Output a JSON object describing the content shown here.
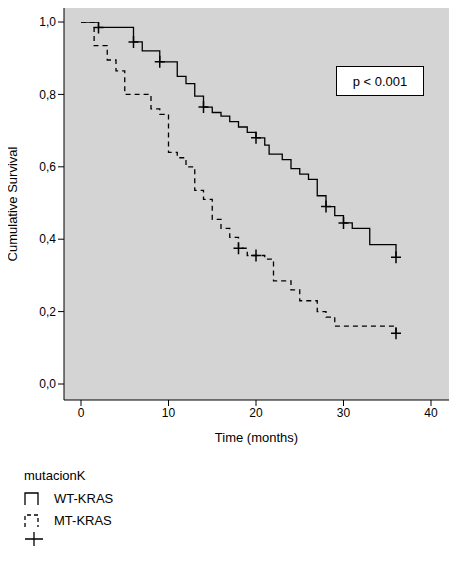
{
  "chart_data": {
    "type": "line",
    "x_label": "Time (months)",
    "y_label": "Cumulative Survival",
    "annotation": "p < 0.001",
    "legend_title": "mutacionK",
    "xlim": [
      0,
      40
    ],
    "xticks": [
      0,
      10,
      20,
      30,
      40
    ],
    "ylim": [
      0,
      1
    ],
    "yticks": [
      {
        "value": 0,
        "label": "0,0"
      },
      {
        "value": 0.2,
        "label": "0,2"
      },
      {
        "value": 0.4,
        "label": "0,4"
      },
      {
        "value": 0.6,
        "label": "0,6"
      },
      {
        "value": 0.8,
        "label": "0,8"
      },
      {
        "value": 1,
        "label": "1,0"
      }
    ],
    "grid": false,
    "legend": "bottom",
    "series": [
      {
        "name": "WT-KRAS",
        "color": "#000000",
        "line_style": "solid",
        "marker": "plus",
        "x": [
          0,
          2,
          6,
          7,
          9,
          11,
          12,
          13,
          14,
          15,
          16,
          17,
          18,
          19,
          20,
          21,
          21.5,
          23,
          24,
          25,
          26,
          27,
          28,
          29,
          30,
          31,
          33,
          36
        ],
        "values": [
          1,
          0.985,
          0.945,
          0.92,
          0.89,
          0.85,
          0.83,
          0.795,
          0.765,
          0.75,
          0.74,
          0.725,
          0.71,
          0.695,
          0.68,
          0.66,
          0.635,
          0.62,
          0.595,
          0.58,
          0.565,
          0.52,
          0.49,
          0.465,
          0.445,
          0.43,
          0.385,
          0.35
        ],
        "censored": {
          "x": [
            2,
            6,
            9,
            14,
            20,
            28,
            30,
            36
          ],
          "y": [
            0.985,
            0.945,
            0.89,
            0.765,
            0.68,
            0.49,
            0.445,
            0.35
          ]
        }
      },
      {
        "name": "MT-KRAS",
        "color": "#000000",
        "line_style": "dashed",
        "marker": "plus",
        "x": [
          0,
          1.5,
          3,
          4,
          5,
          8,
          9,
          10,
          11,
          12,
          13,
          14,
          15,
          16,
          17,
          18,
          19,
          21,
          22,
          24,
          25,
          27,
          28,
          29,
          36
        ],
        "values": [
          1,
          0.935,
          0.895,
          0.865,
          0.8,
          0.76,
          0.745,
          0.64,
          0.625,
          0.6,
          0.535,
          0.51,
          0.455,
          0.43,
          0.405,
          0.375,
          0.355,
          0.345,
          0.285,
          0.26,
          0.23,
          0.2,
          0.185,
          0.16,
          0.14
        ],
        "censored": {
          "x": [
            18,
            20,
            36
          ],
          "y": [
            0.375,
            0.355,
            0.14
          ]
        }
      }
    ]
  }
}
